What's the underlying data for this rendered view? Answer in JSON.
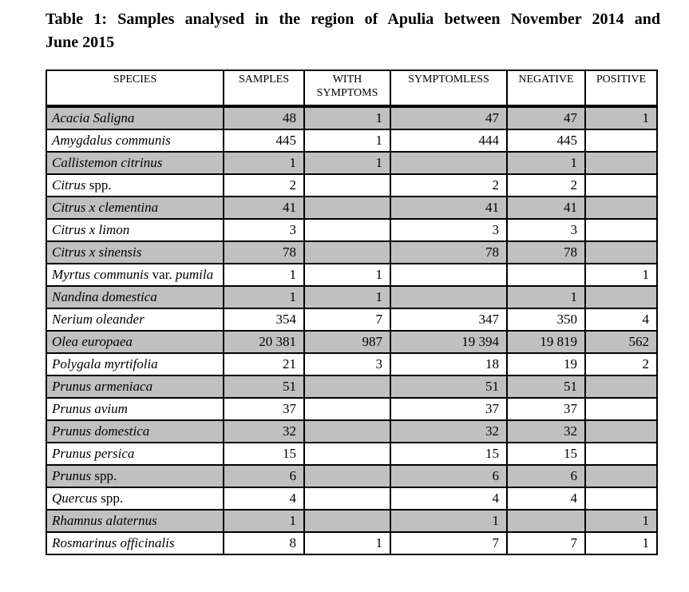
{
  "caption": {
    "line1": "Table 1: Samples analysed in the region of Apulia between November 2014 and",
    "line2": "June 2015"
  },
  "colors": {
    "shaded_row": "#c0c0c0",
    "border": "#000000",
    "text": "#000000",
    "background": "#ffffff"
  },
  "table": {
    "columns": [
      "SPECIES",
      "SAMPLES",
      "WITH SYMPTOMS",
      "SYMPTOMLESS",
      "NEGATIVE",
      "POSITIVE"
    ],
    "rows": [
      {
        "species": [
          {
            "text": "Acacia Saligna",
            "italic": true
          }
        ],
        "values": [
          "48",
          "1",
          "47",
          "47",
          "1"
        ]
      },
      {
        "species": [
          {
            "text": "Amygdalus communis",
            "italic": true
          }
        ],
        "values": [
          "445",
          "1",
          "444",
          "445",
          ""
        ]
      },
      {
        "species": [
          {
            "text": "Callistemon citrinus",
            "italic": true
          }
        ],
        "values": [
          "1",
          "1",
          "",
          "1",
          ""
        ]
      },
      {
        "species": [
          {
            "text": "Citrus",
            "italic": true
          },
          {
            "text": " spp.",
            "italic": false
          }
        ],
        "values": [
          "2",
          "",
          "2",
          "2",
          ""
        ]
      },
      {
        "species": [
          {
            "text": "Citrus x clementina",
            "italic": true
          }
        ],
        "values": [
          "41",
          "",
          "41",
          "41",
          ""
        ]
      },
      {
        "species": [
          {
            "text": "Citrus x limon",
            "italic": true
          }
        ],
        "values": [
          "3",
          "",
          "3",
          "3",
          ""
        ]
      },
      {
        "species": [
          {
            "text": "Citrus x sinensis",
            "italic": true
          }
        ],
        "values": [
          "78",
          "",
          "78",
          "78",
          ""
        ]
      },
      {
        "species": [
          {
            "text": "Myrtus communis",
            "italic": true
          },
          {
            "text": " var. ",
            "italic": false
          },
          {
            "text": "pumila",
            "italic": true
          }
        ],
        "values": [
          "1",
          "1",
          "",
          "",
          "1"
        ]
      },
      {
        "species": [
          {
            "text": "Nandina domestica",
            "italic": true
          }
        ],
        "values": [
          "1",
          "1",
          "",
          "1",
          ""
        ]
      },
      {
        "species": [
          {
            "text": "Nerium oleander",
            "italic": true
          }
        ],
        "values": [
          "354",
          "7",
          "347",
          "350",
          "4"
        ]
      },
      {
        "species": [
          {
            "text": "Olea europaea",
            "italic": true
          }
        ],
        "values": [
          "20 381",
          "987",
          "19 394",
          "19 819",
          "562"
        ]
      },
      {
        "species": [
          {
            "text": "Polygala myrtifolia",
            "italic": true
          }
        ],
        "values": [
          "21",
          "3",
          "18",
          "19",
          "2"
        ]
      },
      {
        "species": [
          {
            "text": "Prunus armeniaca",
            "italic": true
          }
        ],
        "values": [
          "51",
          "",
          "51",
          "51",
          ""
        ]
      },
      {
        "species": [
          {
            "text": "Prunus avium",
            "italic": true
          }
        ],
        "values": [
          "37",
          "",
          "37",
          "37",
          ""
        ]
      },
      {
        "species": [
          {
            "text": "Prunus domestica",
            "italic": true
          }
        ],
        "values": [
          "32",
          "",
          "32",
          "32",
          ""
        ]
      },
      {
        "species": [
          {
            "text": "Prunus persica",
            "italic": true
          }
        ],
        "values": [
          "15",
          "",
          "15",
          "15",
          ""
        ]
      },
      {
        "species": [
          {
            "text": "Prunus",
            "italic": true
          },
          {
            "text": " spp.",
            "italic": false
          }
        ],
        "values": [
          "6",
          "",
          "6",
          "6",
          ""
        ]
      },
      {
        "species": [
          {
            "text": "Quercus",
            "italic": true
          },
          {
            "text": " spp.",
            "italic": false
          }
        ],
        "values": [
          "4",
          "",
          "4",
          "4",
          ""
        ]
      },
      {
        "species": [
          {
            "text": "Rhamnus alaternus",
            "italic": true
          }
        ],
        "values": [
          "1",
          "",
          "1",
          "",
          "1"
        ]
      },
      {
        "species": [
          {
            "text": "Rosmarinus officinalis",
            "italic": true
          }
        ],
        "values": [
          "8",
          "1",
          "7",
          "7",
          "1"
        ]
      }
    ]
  }
}
